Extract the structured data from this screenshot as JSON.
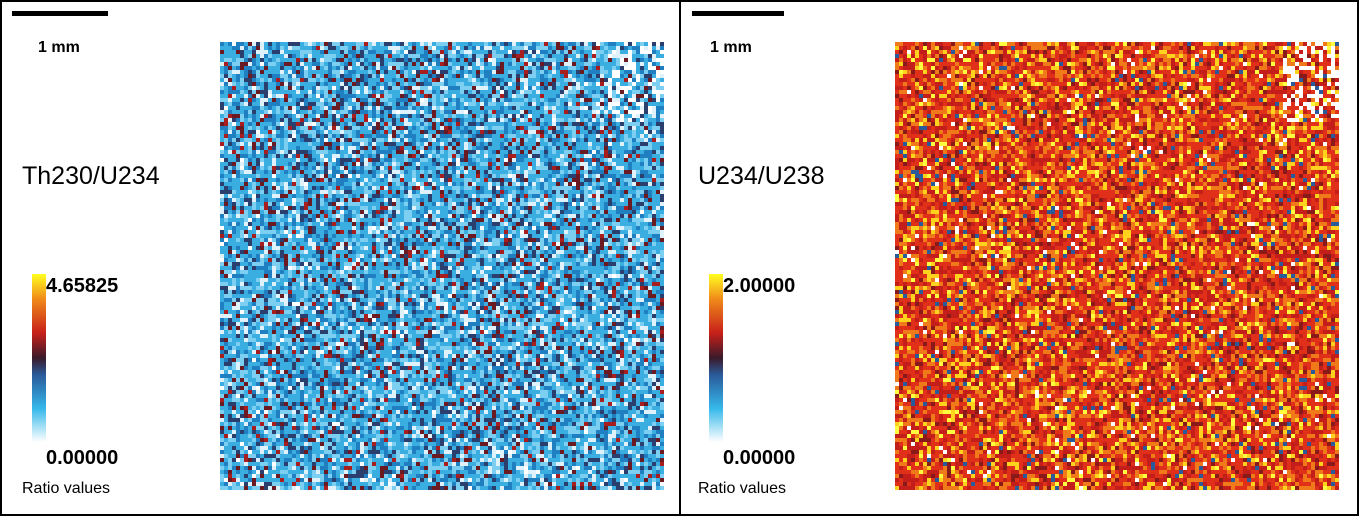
{
  "panels": [
    {
      "scale_label": "1 mm",
      "title": "Th230/U234",
      "colorbar": {
        "max": "4.65825",
        "min": "0.00000",
        "label": "Ratio values"
      }
    },
    {
      "scale_label": "1 mm",
      "title": "U234/U238",
      "colorbar": {
        "max": "2.00000",
        "min": "0.00000",
        "label": "Ratio values"
      }
    }
  ]
}
